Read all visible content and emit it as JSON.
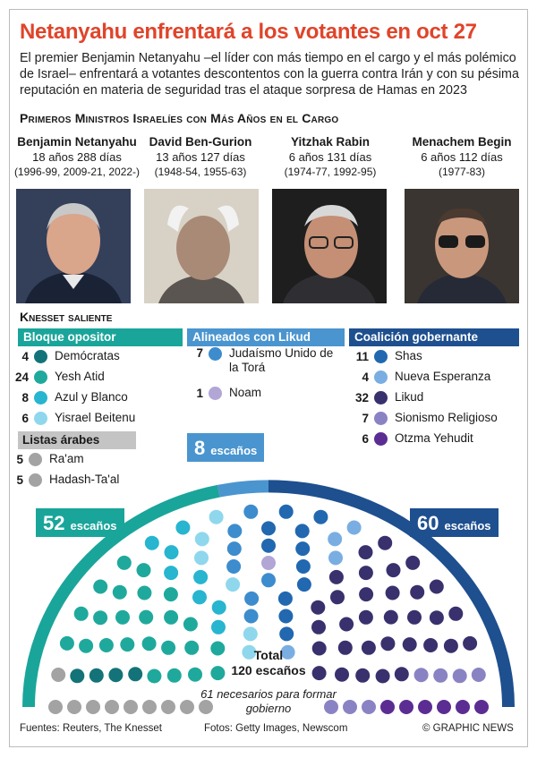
{
  "title": "Netanyahu enfrentará a los votantes en oct 27",
  "intro": "El premier Benjamin Netanyahu –el líder con más tiempo en el cargo y el más polémico de Israel– enfrentará a votantes descontentos con la guerra contra Irán y con su pésima reputación en materia de seguridad tras el ataque sorpresa de Hamas en 2023",
  "pm_section": {
    "heading": "Primeros Ministros Israelíes con Más Años en el Cargo",
    "ministers": [
      {
        "name": "Benjamin Netanyahu",
        "years": "18 años 288 días",
        "terms": "(1996-99, 2009-21, 2022-)"
      },
      {
        "name": "David Ben-Gurion",
        "years": "13 años 127 días",
        "terms": "(1948-54, 1955-63)"
      },
      {
        "name": "Yitzhak Rabin",
        "years": "6 años 131 días",
        "terms": "(1974-77, 1992-95)"
      },
      {
        "name": "Menachem Begin",
        "years": "6 años 112 días",
        "terms": "(1977-83)"
      }
    ]
  },
  "knesset": {
    "heading": "Knesset saliente",
    "blocs": [
      {
        "label": "Bloque opositor",
        "color": "#1aa59a",
        "parties": [
          {
            "seats": 4,
            "name": "Demócratas",
            "color": "#137378"
          },
          {
            "seats": 24,
            "name": "Yesh Atid",
            "color": "#1fa99c"
          },
          {
            "seats": 8,
            "name": "Azul y Blanco",
            "color": "#27b5cf"
          },
          {
            "seats": 6,
            "name": "Yisrael Beitenu",
            "color": "#8fd7ec"
          }
        ]
      },
      {
        "label": "Alineados con Likud",
        "color": "#4a95cf",
        "parties": [
          {
            "seats": 7,
            "name": "Judaísmo Unido de la Torá",
            "color": "#3d8ccd"
          },
          {
            "seats": 1,
            "name": "Noam",
            "color": "#b1a6d6"
          }
        ]
      },
      {
        "label": "Coalición gobernante",
        "color": "#1e4f8f",
        "parties": [
          {
            "seats": 11,
            "name": "Shas",
            "color": "#2168b0"
          },
          {
            "seats": 4,
            "name": "Nueva Esperanza",
            "color": "#7aaee2"
          },
          {
            "seats": 32,
            "name": "Likud",
            "color": "#38316d"
          },
          {
            "seats": 7,
            "name": "Sionismo Religioso",
            "color": "#8a83c3"
          },
          {
            "seats": 6,
            "name": "Otzma Yehudit",
            "color": "#5b2d93"
          }
        ]
      }
    ],
    "arab_lists": {
      "label": "Listas árabes",
      "parties": [
        {
          "seats": 5,
          "name": "Ra'am",
          "color": "#a3a3a3"
        },
        {
          "seats": 5,
          "name": "Hadash-Ta'al",
          "color": "#a3a3a3"
        }
      ]
    },
    "callouts": {
      "opposition": {
        "value": "52",
        "unit": "escaños",
        "color": "#1aa59a"
      },
      "aligned": {
        "value": "8",
        "unit": "escaños",
        "color": "#4a95cf"
      },
      "coalition": {
        "value": "60",
        "unit": "escaños",
        "color": "#1e4f8f"
      }
    },
    "total_label": "Total",
    "total_value": "120 escaños",
    "needed": "61 necesarios para formar gobierno"
  },
  "footer": {
    "sources": "Fuentes: Reuters, The Knesset",
    "photos": "Fotos: Getty Images, Newscom",
    "credit": "© GRAPHIC NEWS"
  }
}
